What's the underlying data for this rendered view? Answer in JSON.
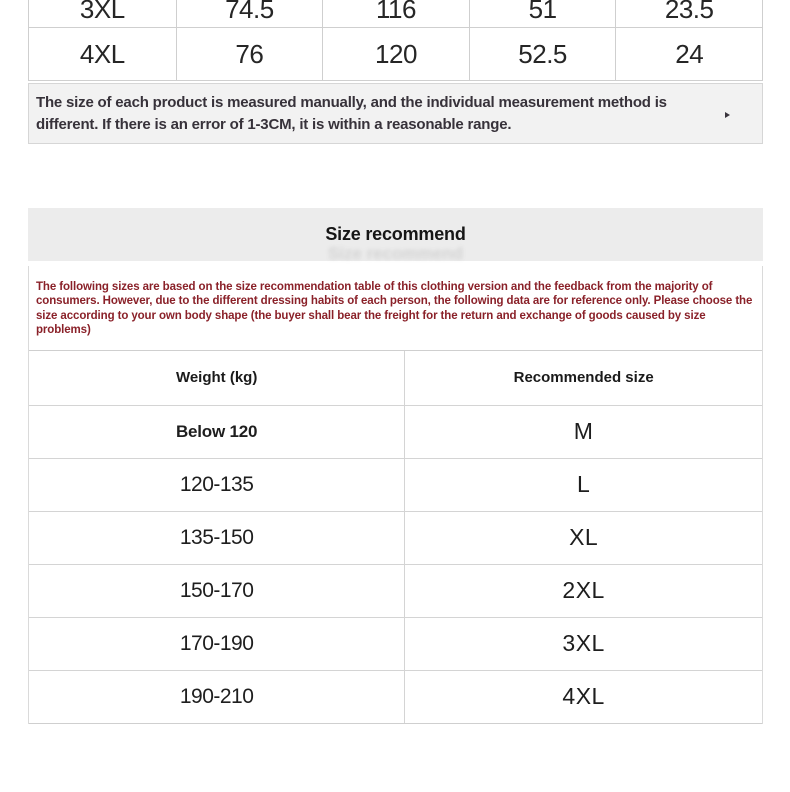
{
  "colors": {
    "border": "#cfcfcf",
    "notice_bg": "#f2f2f2",
    "header_bg": "#ececec",
    "maroon": "#8a2129"
  },
  "top_table": {
    "rows": [
      {
        "cells": [
          "3XL",
          "74.5",
          "116",
          "51",
          "23.5"
        ]
      },
      {
        "cells": [
          "4XL",
          "76",
          "120",
          "52.5",
          "24"
        ]
      }
    ]
  },
  "notice": {
    "text": "The size of each product is measured manually, and the individual measurement method is different. If there is an error of 1-3CM, it is within a reasonable range."
  },
  "size_recommend": {
    "title": "Size recommend",
    "disclaimer": "The following sizes are based on the size recommendation table of this clothing version and the feedback from the majority of consumers. However, due to the different dressing habits of each person, the following data are for reference only. Please choose the size according to your own body shape (the buyer shall bear the freight for the return and exchange of goods caused by size problems)",
    "table": {
      "headers": [
        "Weight (kg)",
        "Recommended size"
      ],
      "rows": [
        [
          "Below 120",
          "M"
        ],
        [
          "120-135",
          "L"
        ],
        [
          "135-150",
          "XL"
        ],
        [
          "150-170",
          "2XL"
        ],
        [
          "170-190",
          "3XL"
        ],
        [
          "190-210",
          "4XL"
        ]
      ]
    }
  }
}
